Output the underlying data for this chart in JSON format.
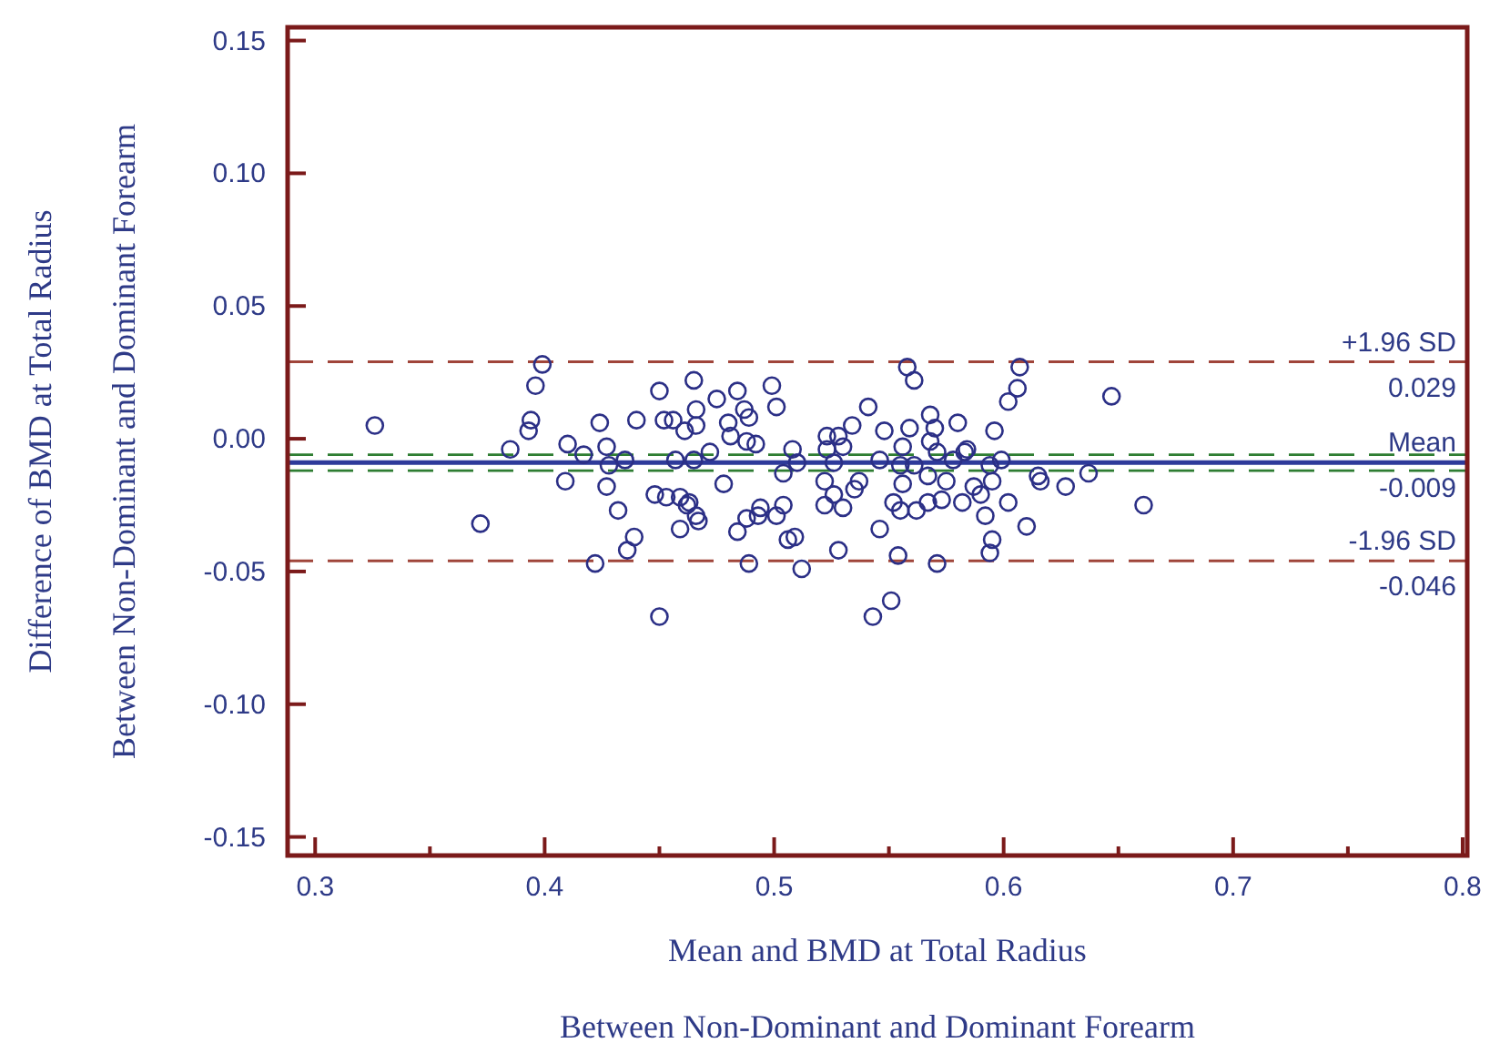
{
  "chart_data": {
    "type": "scatter",
    "xlabel": "Mean and BMD at Total Radius\nBetween Non-Dominant and Dominant Forearm",
    "ylabel": "Difference of BMD at Total Radius\nBetween Non-Dominant and Dominant Forearm",
    "marker": "circle",
    "color": "#2b2f86",
    "grid": false,
    "annotations": [
      {
        "text": "0.029",
        "y": 0.029
      },
      {
        "text": "-0.009",
        "y": -0.009
      },
      {
        "text": "-0.046",
        "y": -0.046
      }
    ],
    "xlim": [
      0.288,
      0.802
    ],
    "ylim": [
      -0.157,
      0.155
    ],
    "xticks": [
      0.3,
      {
        "value": 0.35,
        "label": null
      },
      0.4,
      {
        "value": 0.45,
        "label": null
      },
      0.5,
      {
        "value": 0.55,
        "label": null
      },
      0.6,
      {
        "value": 0.65,
        "label": null
      },
      0.7,
      {
        "value": 0.75,
        "label": null
      },
      0.8
    ],
    "yticks": [
      {
        "value": -0.15,
        "label": "-0.15"
      },
      {
        "value": -0.1,
        "label": "-0.10"
      },
      {
        "value": -0.05,
        "label": "-0.05"
      },
      {
        "value": 0,
        "label": "0.00"
      },
      {
        "value": 0.05,
        "label": "0.05"
      },
      {
        "value": 0.1,
        "label": "0.10"
      },
      {
        "value": 0.15,
        "label": "0.15"
      }
    ],
    "ref_lines": [
      {
        "axis": "y",
        "value": 0.029,
        "label": "+1.96 SD",
        "color": "#a0453a",
        "line_style": "dashed"
      },
      {
        "axis": "y",
        "value": -0.009,
        "label": "Mean",
        "color": "#2e3a9a",
        "line_style": "solid"
      },
      {
        "axis": "y",
        "value": -0.046,
        "label": "-1.96 SD",
        "color": "#a0453a",
        "line_style": "dashed"
      },
      {
        "axis": "y",
        "value": -0.006,
        "color": "#2e7d32",
        "line_style": "dashed"
      },
      {
        "axis": "y",
        "value": -0.012,
        "color": "#2e7d32",
        "line_style": "dashed"
      }
    ],
    "x": [
      0.326,
      0.399,
      0.396,
      0.394,
      0.393,
      0.385,
      0.372,
      0.41,
      0.417,
      0.409,
      0.424,
      0.427,
      0.428,
      0.427,
      0.435,
      0.432,
      0.439,
      0.436,
      0.422,
      0.45,
      0.44,
      0.45,
      0.452,
      0.456,
      0.461,
      0.465,
      0.457,
      0.448,
      0.453,
      0.459,
      0.462,
      0.459,
      0.466,
      0.466,
      0.466,
      0.475,
      0.484,
      0.48,
      0.487,
      0.489,
      0.481,
      0.488,
      0.492,
      0.499,
      0.501,
      0.472,
      0.465,
      0.478,
      0.463,
      0.467,
      0.484,
      0.488,
      0.494,
      0.493,
      0.501,
      0.504,
      0.506,
      0.509,
      0.489,
      0.512,
      0.508,
      0.51,
      0.504,
      0.523,
      0.528,
      0.534,
      0.541,
      0.523,
      0.53,
      0.526,
      0.522,
      0.526,
      0.522,
      0.53,
      0.535,
      0.537,
      0.528,
      0.543,
      0.551,
      0.546,
      0.554,
      0.571,
      0.548,
      0.559,
      0.558,
      0.561,
      0.546,
      0.556,
      0.555,
      0.556,
      0.552,
      0.555,
      0.562,
      0.567,
      0.573,
      0.568,
      0.57,
      0.58,
      0.568,
      0.571,
      0.575,
      0.583,
      0.582,
      0.561,
      0.567,
      0.607,
      0.606,
      0.602,
      0.647,
      0.596,
      0.584,
      0.578,
      0.599,
      0.594,
      0.595,
      0.587,
      0.59,
      0.602,
      0.592,
      0.61,
      0.595,
      0.594,
      0.615,
      0.616,
      0.627,
      0.637,
      0.661
    ],
    "values": [
      0.005,
      0.028,
      0.02,
      0.007,
      0.003,
      -0.004,
      -0.032,
      -0.002,
      -0.006,
      -0.016,
      0.006,
      -0.003,
      -0.01,
      -0.018,
      -0.008,
      -0.027,
      -0.037,
      -0.042,
      -0.047,
      -0.067,
      0.007,
      0.018,
      0.007,
      0.007,
      0.003,
      0.022,
      -0.008,
      -0.021,
      -0.022,
      -0.022,
      -0.025,
      -0.034,
      -0.029,
      0.011,
      0.005,
      0.015,
      0.018,
      0.006,
      0.011,
      0.008,
      0.001,
      -0.001,
      -0.002,
      0.02,
      0.012,
      -0.005,
      -0.008,
      -0.017,
      -0.024,
      -0.031,
      -0.035,
      -0.03,
      -0.026,
      -0.029,
      -0.029,
      -0.025,
      -0.038,
      -0.037,
      -0.047,
      -0.049,
      -0.004,
      -0.009,
      -0.013,
      0.001,
      0.001,
      0.005,
      0.012,
      -0.004,
      -0.003,
      -0.009,
      -0.016,
      -0.021,
      -0.025,
      -0.026,
      -0.019,
      -0.016,
      -0.042,
      -0.067,
      -0.061,
      -0.034,
      -0.044,
      -0.047,
      0.003,
      0.004,
      0.027,
      0.022,
      -0.008,
      -0.003,
      -0.01,
      -0.017,
      -0.024,
      -0.027,
      -0.027,
      -0.024,
      -0.023,
      0.009,
      0.004,
      0.006,
      -0.001,
      -0.005,
      -0.016,
      -0.005,
      -0.024,
      -0.01,
      -0.014,
      0.027,
      0.019,
      0.014,
      0.016,
      0.003,
      -0.004,
      -0.008,
      -0.008,
      -0.01,
      -0.016,
      -0.018,
      -0.021,
      -0.024,
      -0.029,
      -0.033,
      -0.038,
      -0.043,
      -0.014,
      -0.016,
      -0.018,
      -0.013,
      -0.025
    ]
  }
}
